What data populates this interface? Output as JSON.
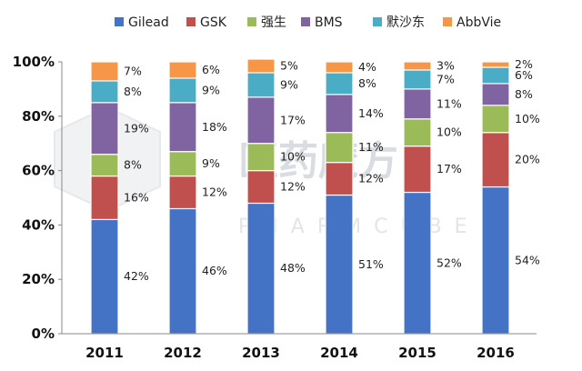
{
  "chart_data": {
    "type": "bar",
    "stacked": true,
    "percent": true,
    "categories": [
      "2011",
      "2012",
      "2013",
      "2014",
      "2015",
      "2016"
    ],
    "series": [
      {
        "name": "Gilead",
        "color": "#4472c4",
        "values": [
          42,
          46,
          48,
          51,
          52,
          54
        ]
      },
      {
        "name": "GSK",
        "color": "#c0504d",
        "values": [
          16,
          12,
          12,
          12,
          17,
          20
        ]
      },
      {
        "name": "强生",
        "color": "#9bbb59",
        "values": [
          8,
          9,
          10,
          11,
          10,
          10
        ]
      },
      {
        "name": "BMS",
        "color": "#8064a2",
        "values": [
          19,
          18,
          17,
          14,
          11,
          8
        ]
      },
      {
        "name": "默沙东",
        "color": "#4bacc6",
        "values": [
          8,
          9,
          9,
          8,
          7,
          6
        ]
      },
      {
        "name": "AbbVie",
        "color": "#f79646",
        "values": [
          7,
          6,
          5,
          4,
          3,
          2
        ]
      }
    ],
    "ylim": [
      0,
      100
    ],
    "yticks": [
      "0%",
      "20%",
      "40%",
      "60%",
      "80%",
      "100%"
    ],
    "legend_position": "top",
    "grid": false,
    "title": "",
    "xlabel": "",
    "ylabel": ""
  },
  "watermark": {
    "text": "医药魔方",
    "subtext": "PHARMCUBE"
  }
}
